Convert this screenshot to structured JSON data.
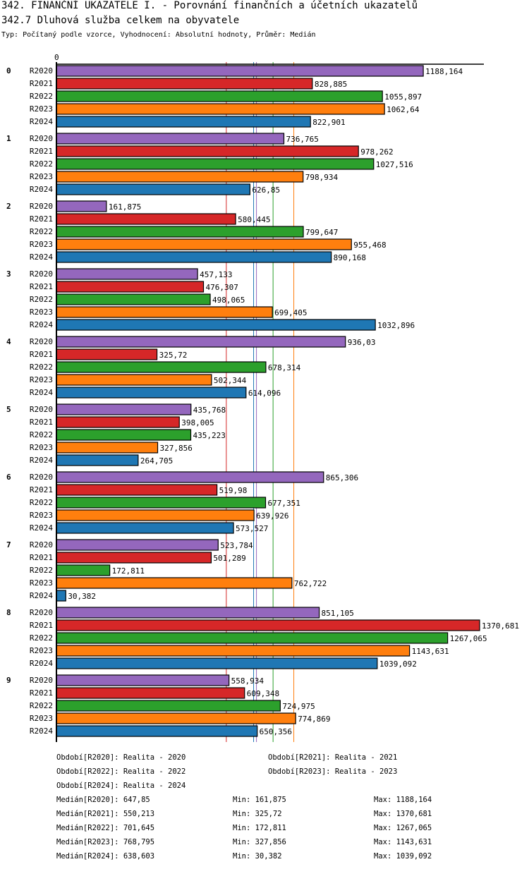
{
  "title": "342. FINANČNÍ UKAZATELE I. - Porovnání finančních a účetních ukazatelů",
  "subtitle": "342.7 Dluhová služba celkem na obyvatele",
  "info": "Typ: Počítaný podle vzorce, Vyhodnocení: Absolutní hodnoty, Průměr: Medián",
  "chart_data": {
    "type": "bar",
    "orientation": "horizontal",
    "categories": [
      "0",
      "1",
      "2",
      "3",
      "4",
      "5",
      "6",
      "7",
      "8",
      "9"
    ],
    "xlim": [
      0,
      1370.681
    ],
    "x_tick_labels": [
      "0"
    ],
    "series": [
      {
        "name": "R2020",
        "color": "#9467bd",
        "values": [
          1188.164,
          736.765,
          161.875,
          457.133,
          936.03,
          435.768,
          865.306,
          523.784,
          851.105,
          558.934
        ],
        "labels": [
          "1188,164",
          "736,765",
          "161,875",
          "457,133",
          "936,03",
          "435,768",
          "865,306",
          "523,784",
          "851,105",
          "558,934"
        ],
        "median": 647.85
      },
      {
        "name": "R2021",
        "color": "#d62728",
        "values": [
          828.885,
          978.262,
          580.445,
          476.307,
          325.72,
          398.005,
          519.98,
          501.289,
          1370.681,
          609.348
        ],
        "labels": [
          "828,885",
          "978,262",
          "580,445",
          "476,307",
          "325,72",
          "398,005",
          "519,98",
          "501,289",
          "1370,681",
          "609,348"
        ],
        "median": 550.213
      },
      {
        "name": "R2022",
        "color": "#2ca02c",
        "values": [
          1055.897,
          1027.516,
          799.647,
          498.065,
          678.314,
          435.223,
          677.351,
          172.811,
          1267.065,
          724.975
        ],
        "labels": [
          "1055,897",
          "1027,516",
          "799,647",
          "498,065",
          "678,314",
          "435,223",
          "677,351",
          "172,811",
          "1267,065",
          "724,975"
        ],
        "median": 701.645
      },
      {
        "name": "R2023",
        "color": "#ff7f0e",
        "values": [
          1062.64,
          798.934,
          955.468,
          699.405,
          502.344,
          327.856,
          639.926,
          762.722,
          1143.631,
          774.869
        ],
        "labels": [
          "1062,64",
          "798,934",
          "955,468",
          "699,405",
          "502,344",
          "327,856",
          "639,926",
          "762,722",
          "1143,631",
          "774,869"
        ],
        "median": 768.795
      },
      {
        "name": "R2024",
        "color": "#1f77b4",
        "values": [
          822.901,
          626.85,
          890.168,
          1032.896,
          614.096,
          264.705,
          573.527,
          30.382,
          1039.092,
          650.356
        ],
        "labels": [
          "822,901",
          "626,85",
          "890,168",
          "1032,896",
          "614,096",
          "264,705",
          "573,527",
          "30,382",
          "1039,092",
          "650,356"
        ],
        "median": 638.603
      }
    ]
  },
  "legend": [
    "Období[R2020]: Realita - 2020",
    "Období[R2021]: Realita - 2021",
    "Období[R2022]: Realita - 2022",
    "Období[R2023]: Realita - 2023",
    "Období[R2024]: Realita - 2024"
  ],
  "stats": [
    {
      "median": "Medián[R2020]: 647,85",
      "min": "Min: 161,875",
      "max": "Max: 1188,164"
    },
    {
      "median": "Medián[R2021]: 550,213",
      "min": "Min: 325,72",
      "max": "Max: 1370,681"
    },
    {
      "median": "Medián[R2022]: 701,645",
      "min": "Min: 172,811",
      "max": "Max: 1267,065"
    },
    {
      "median": "Medián[R2023]: 768,795",
      "min": "Min: 327,856",
      "max": "Max: 1143,631"
    },
    {
      "median": "Medián[R2024]: 638,603",
      "min": "Min: 30,382",
      "max": "Max: 1039,092"
    }
  ]
}
